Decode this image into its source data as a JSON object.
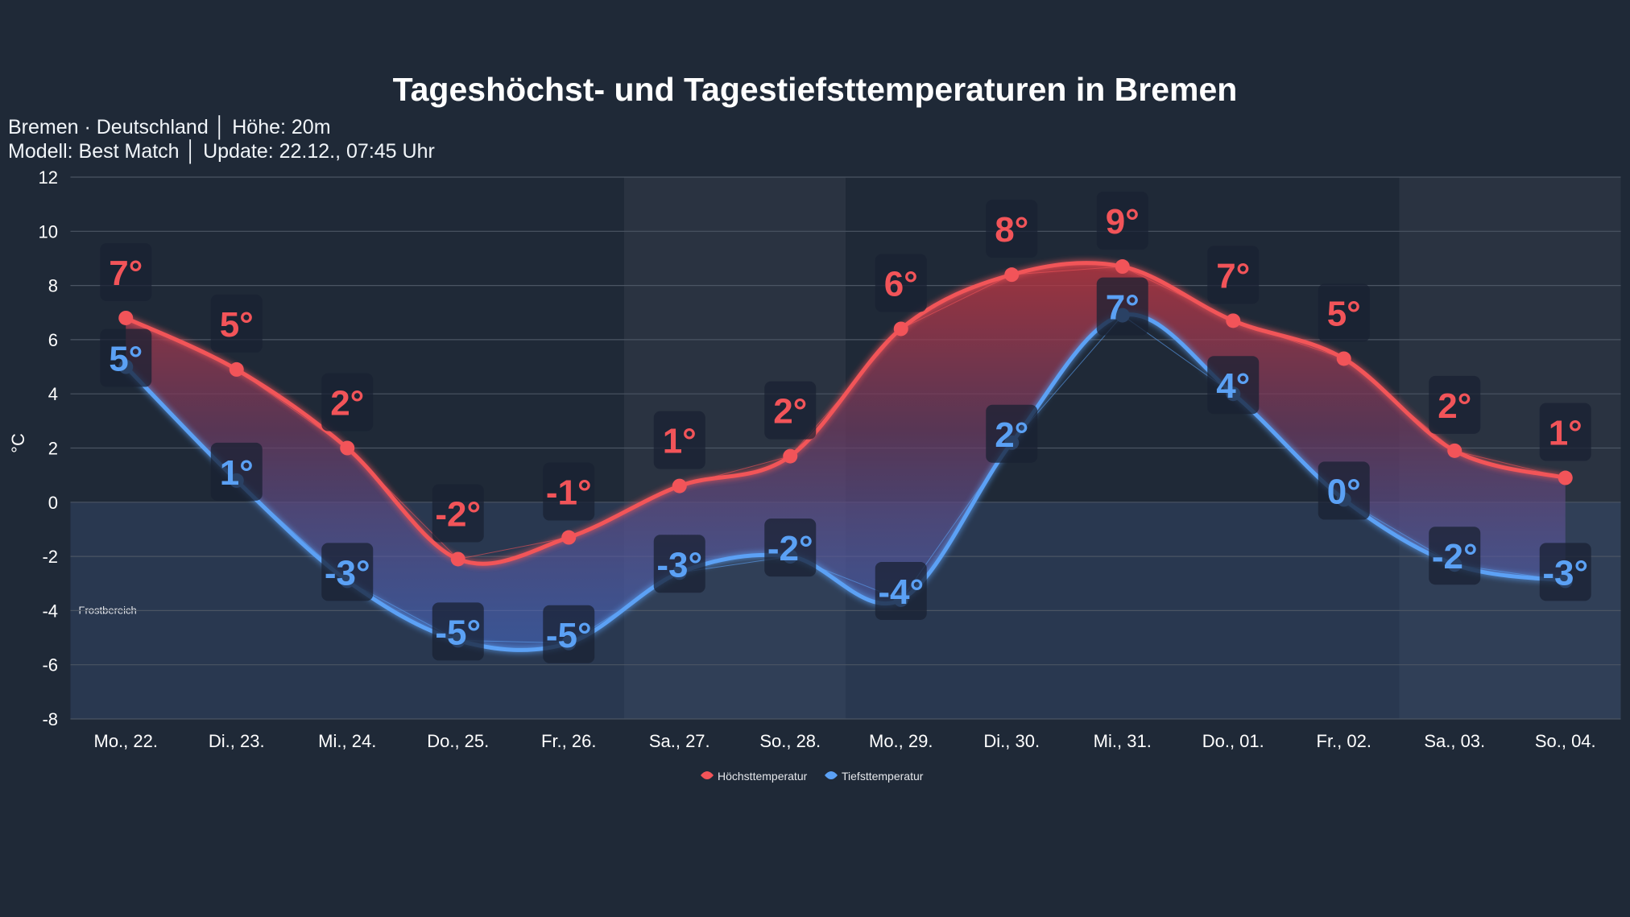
{
  "header": {
    "title": "Tageshöchst- und Tagestiefsttemperaturen in Bremen",
    "subtitle_line1": "Bremen · Deutschland │ Höhe: 20m",
    "subtitle_line2": "Modell: Best Match │ Update: 22.12., 07:45 Uhr"
  },
  "chart_data": {
    "type": "line",
    "title": "Tageshöchst- und Tagestiefsttemperaturen in Bremen",
    "ylabel": "°C",
    "xlabel": "",
    "ylim": [
      -8,
      12
    ],
    "yticks": [
      -8,
      -6,
      -4,
      -2,
      0,
      2,
      4,
      6,
      8,
      10,
      12
    ],
    "grid": true,
    "legend_placement": "bottom-center",
    "categories": [
      "Mo., 22.",
      "Di., 23.",
      "Mi., 24.",
      "Do., 25.",
      "Fr., 26.",
      "Sa., 27.",
      "So., 28.",
      "Mo., 29.",
      "Di., 30.",
      "Mi., 31.",
      "Do., 01.",
      "Fr., 02.",
      "Sa., 03.",
      "So., 04."
    ],
    "weekend_days": [
      "Sa., 27.",
      "So., 28.",
      "Sa., 03.",
      "So., 04."
    ],
    "frost_zone": {
      "label": "Frostbereich",
      "range": [
        -8,
        0
      ]
    },
    "series": [
      {
        "name": "Höchsttemperatur",
        "color": "#f25459",
        "values": [
          6.8,
          4.9,
          2.0,
          -2.1,
          -1.3,
          0.6,
          1.7,
          6.4,
          8.4,
          8.7,
          6.7,
          5.3,
          1.9,
          0.9
        ],
        "labels": [
          "7°",
          "5°",
          "2°",
          "-2°",
          "-1°",
          "1°",
          "2°",
          "6°",
          "8°",
          "9°",
          "7°",
          "5°",
          "2°",
          "1°"
        ]
      },
      {
        "name": "Tiefsttemperatur",
        "color": "#5ba1f5",
        "values": [
          5.0,
          0.8,
          -2.9,
          -5.1,
          -5.2,
          -2.6,
          -2.0,
          -3.6,
          2.2,
          6.9,
          4.0,
          0.1,
          -2.3,
          -2.9
        ],
        "labels": [
          "5°",
          "1°",
          "-3°",
          "-5°",
          "-5°",
          "-3°",
          "-2°",
          "-4°",
          "2°",
          "7°",
          "4°",
          "0°",
          "-2°",
          "-3°"
        ]
      }
    ]
  },
  "colors": {
    "background": "#1f2937",
    "high": "#f25459",
    "low": "#5ba1f5"
  }
}
